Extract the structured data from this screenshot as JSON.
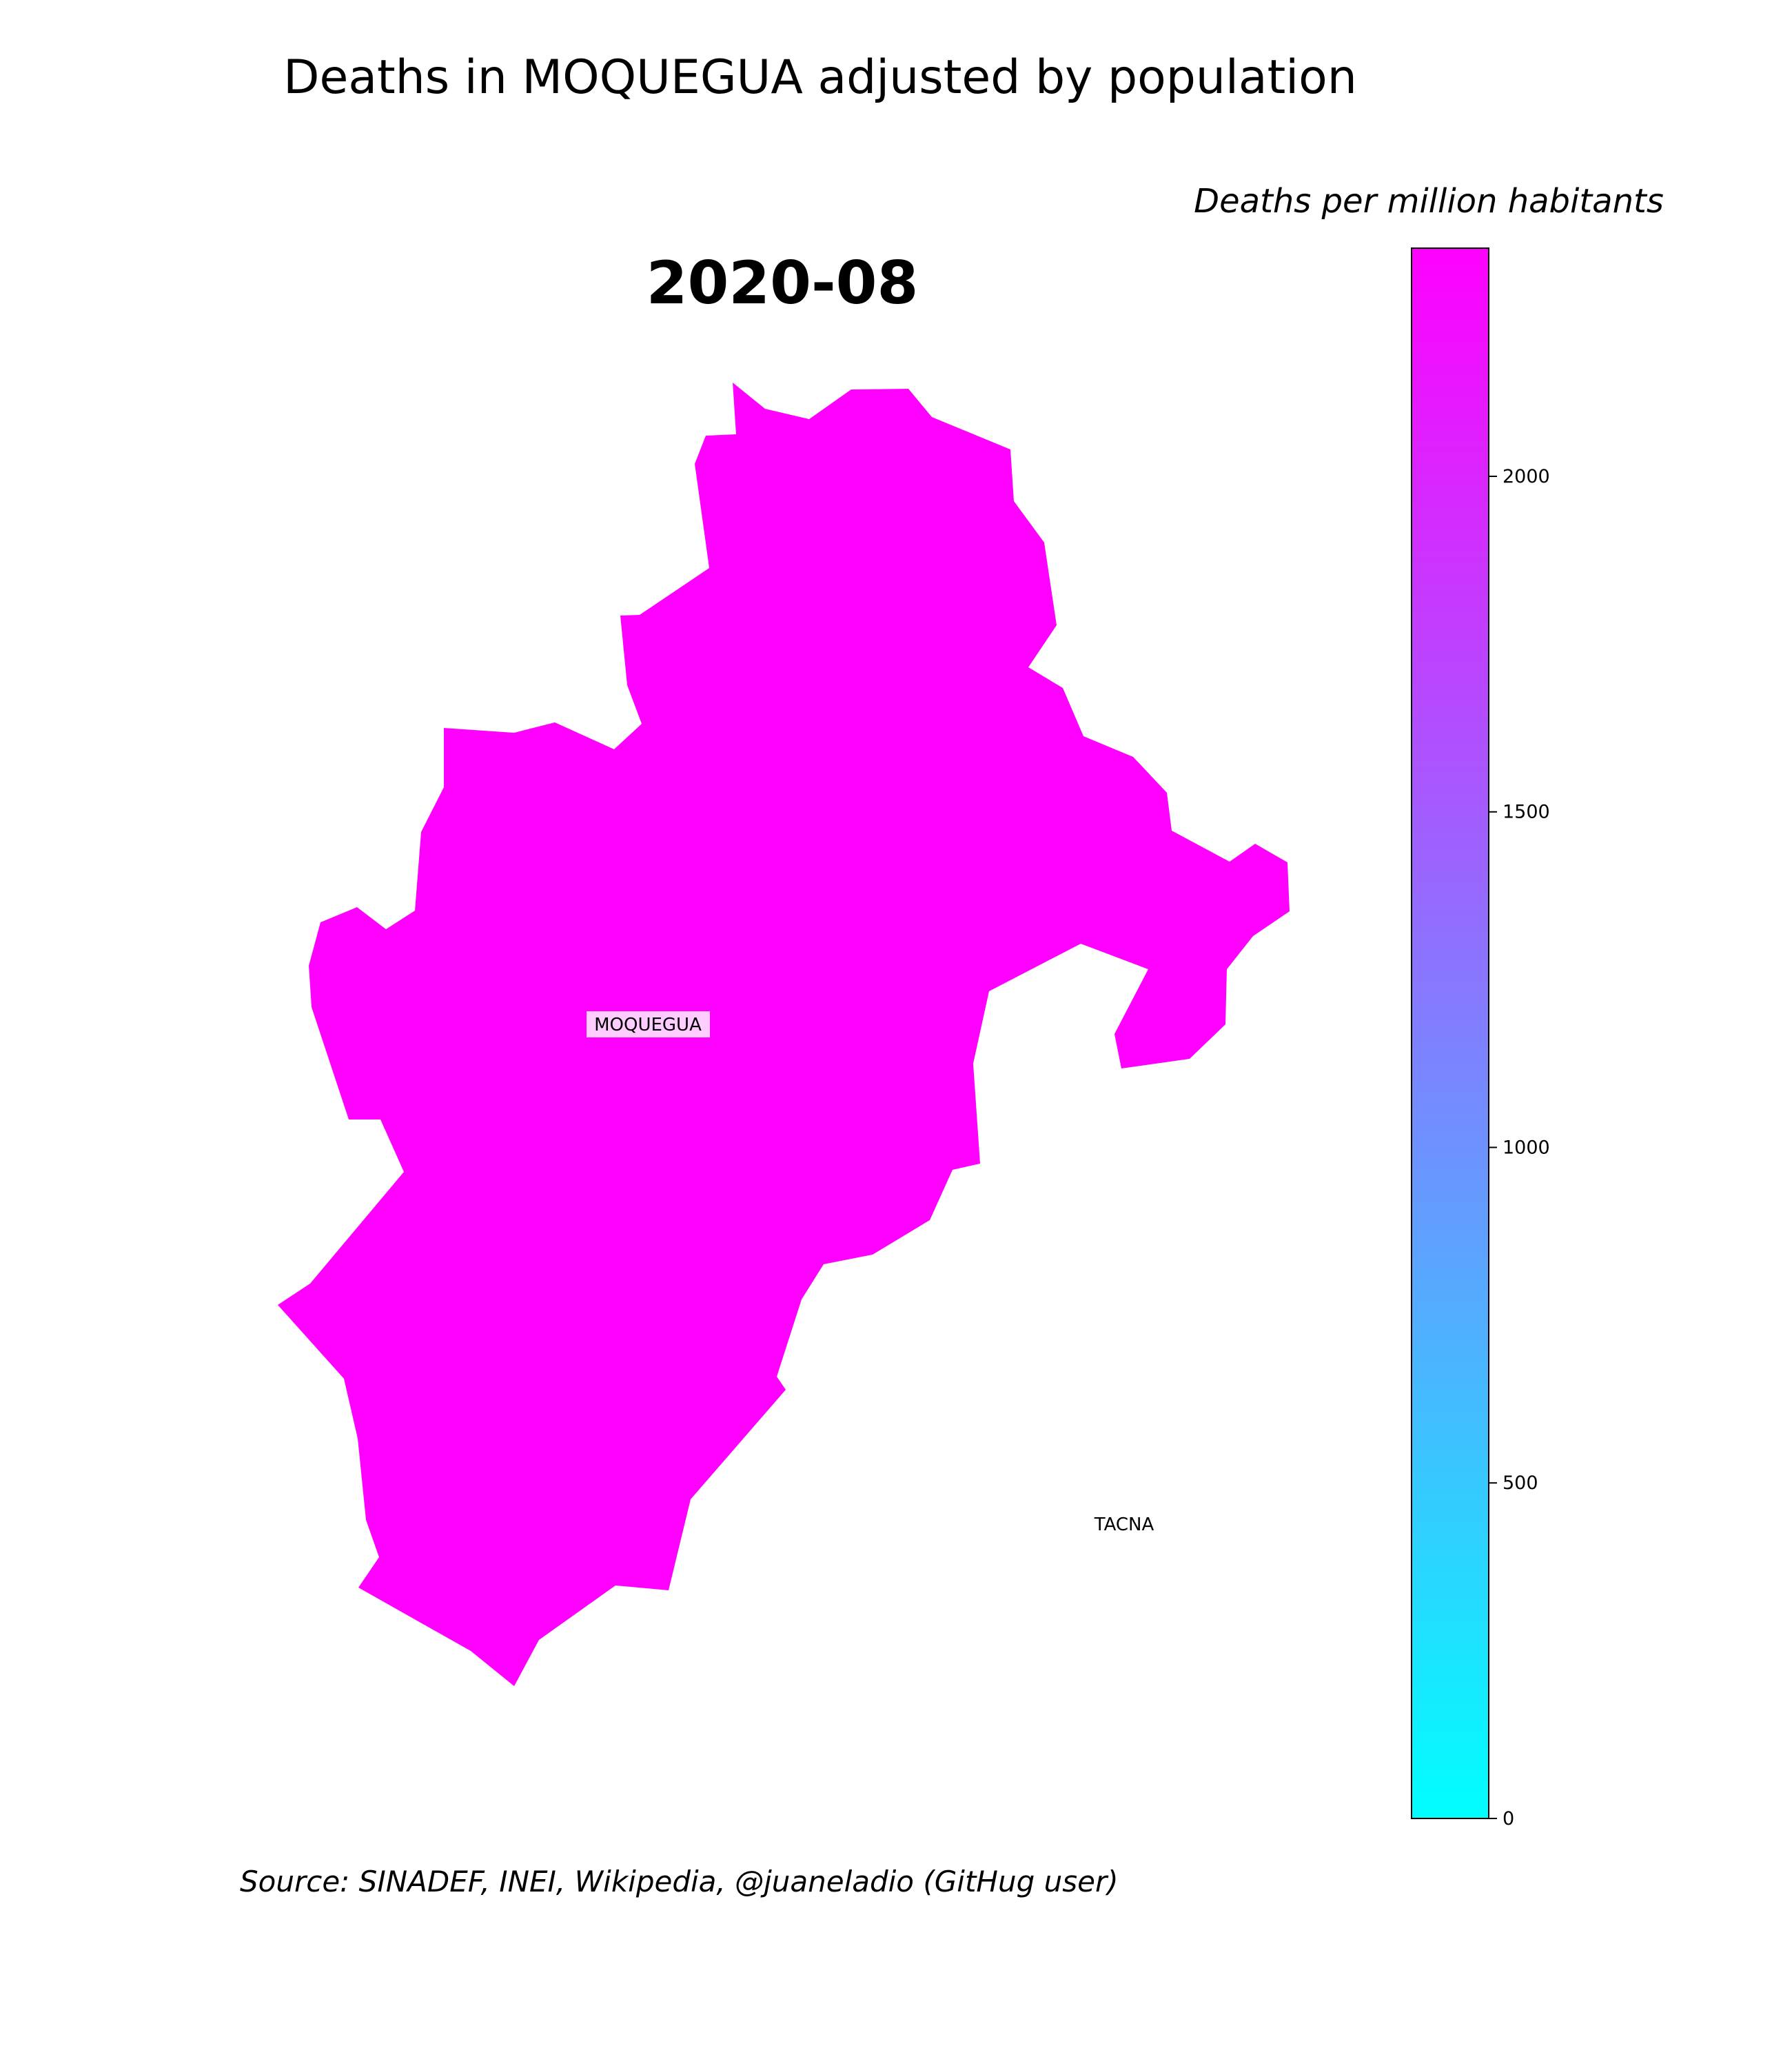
{
  "figure": {
    "title": "Deaths in MOQUEGUA adjusted by population",
    "period": "2020-08",
    "source": "Source: SINADEF, INEI, Wikipedia, @juaneladio (GitHug user)"
  },
  "colorbar": {
    "title": "Deaths per million habitants",
    "colormap": "cool",
    "color_min": "#00ffff",
    "color_max": "#ff00ff",
    "range": [
      0,
      2340
    ],
    "ticks": [
      {
        "value": 0,
        "label": "0"
      },
      {
        "value": 500,
        "label": "500"
      },
      {
        "value": 1000,
        "label": "1000"
      },
      {
        "value": 1500,
        "label": "1500"
      },
      {
        "value": 2000,
        "label": "2000"
      }
    ]
  },
  "map": {
    "regions": [
      {
        "name": "MOQUEGUA",
        "label": "MOQUEGUA",
        "color": "#ff00ff",
        "shaded": true,
        "label_boxed": true
      },
      {
        "name": "TACNA",
        "label": "TACNA",
        "color": "#ffffff",
        "shaded": false,
        "label_boxed": false
      }
    ]
  }
}
